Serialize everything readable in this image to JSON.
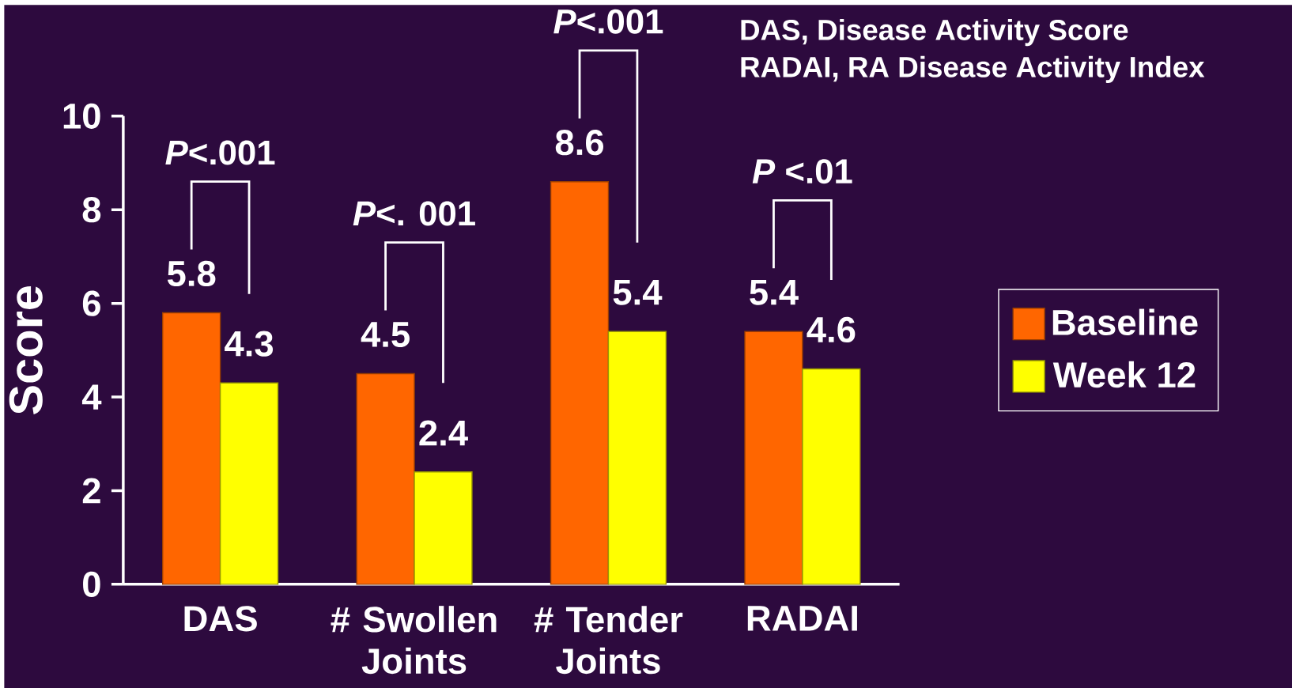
{
  "chart_data": {
    "type": "bar",
    "ylabel": "Score",
    "categories": [
      "DAS",
      "# Swollen Joints",
      "# Tender Joints",
      "RADAI"
    ],
    "series": [
      {
        "name": "Baseline",
        "color": "#ff6600",
        "values": [
          5.8,
          4.5,
          8.6,
          5.4
        ]
      },
      {
        "name": "Week 12",
        "color": "#ffff00",
        "values": [
          4.3,
          2.4,
          5.4,
          4.6
        ]
      }
    ],
    "ylim": [
      0,
      10
    ],
    "yticks": [
      0,
      2,
      4,
      6,
      8,
      10
    ],
    "data_labels": true,
    "legend": "right",
    "annotations": [
      "DAS, Disease Activity Score",
      "RADAI, RA Disease Activity Index",
      "*P*<.001",
      "*P*<. 001",
      "*P*<.001",
      "*P* <.01"
    ]
  }
}
